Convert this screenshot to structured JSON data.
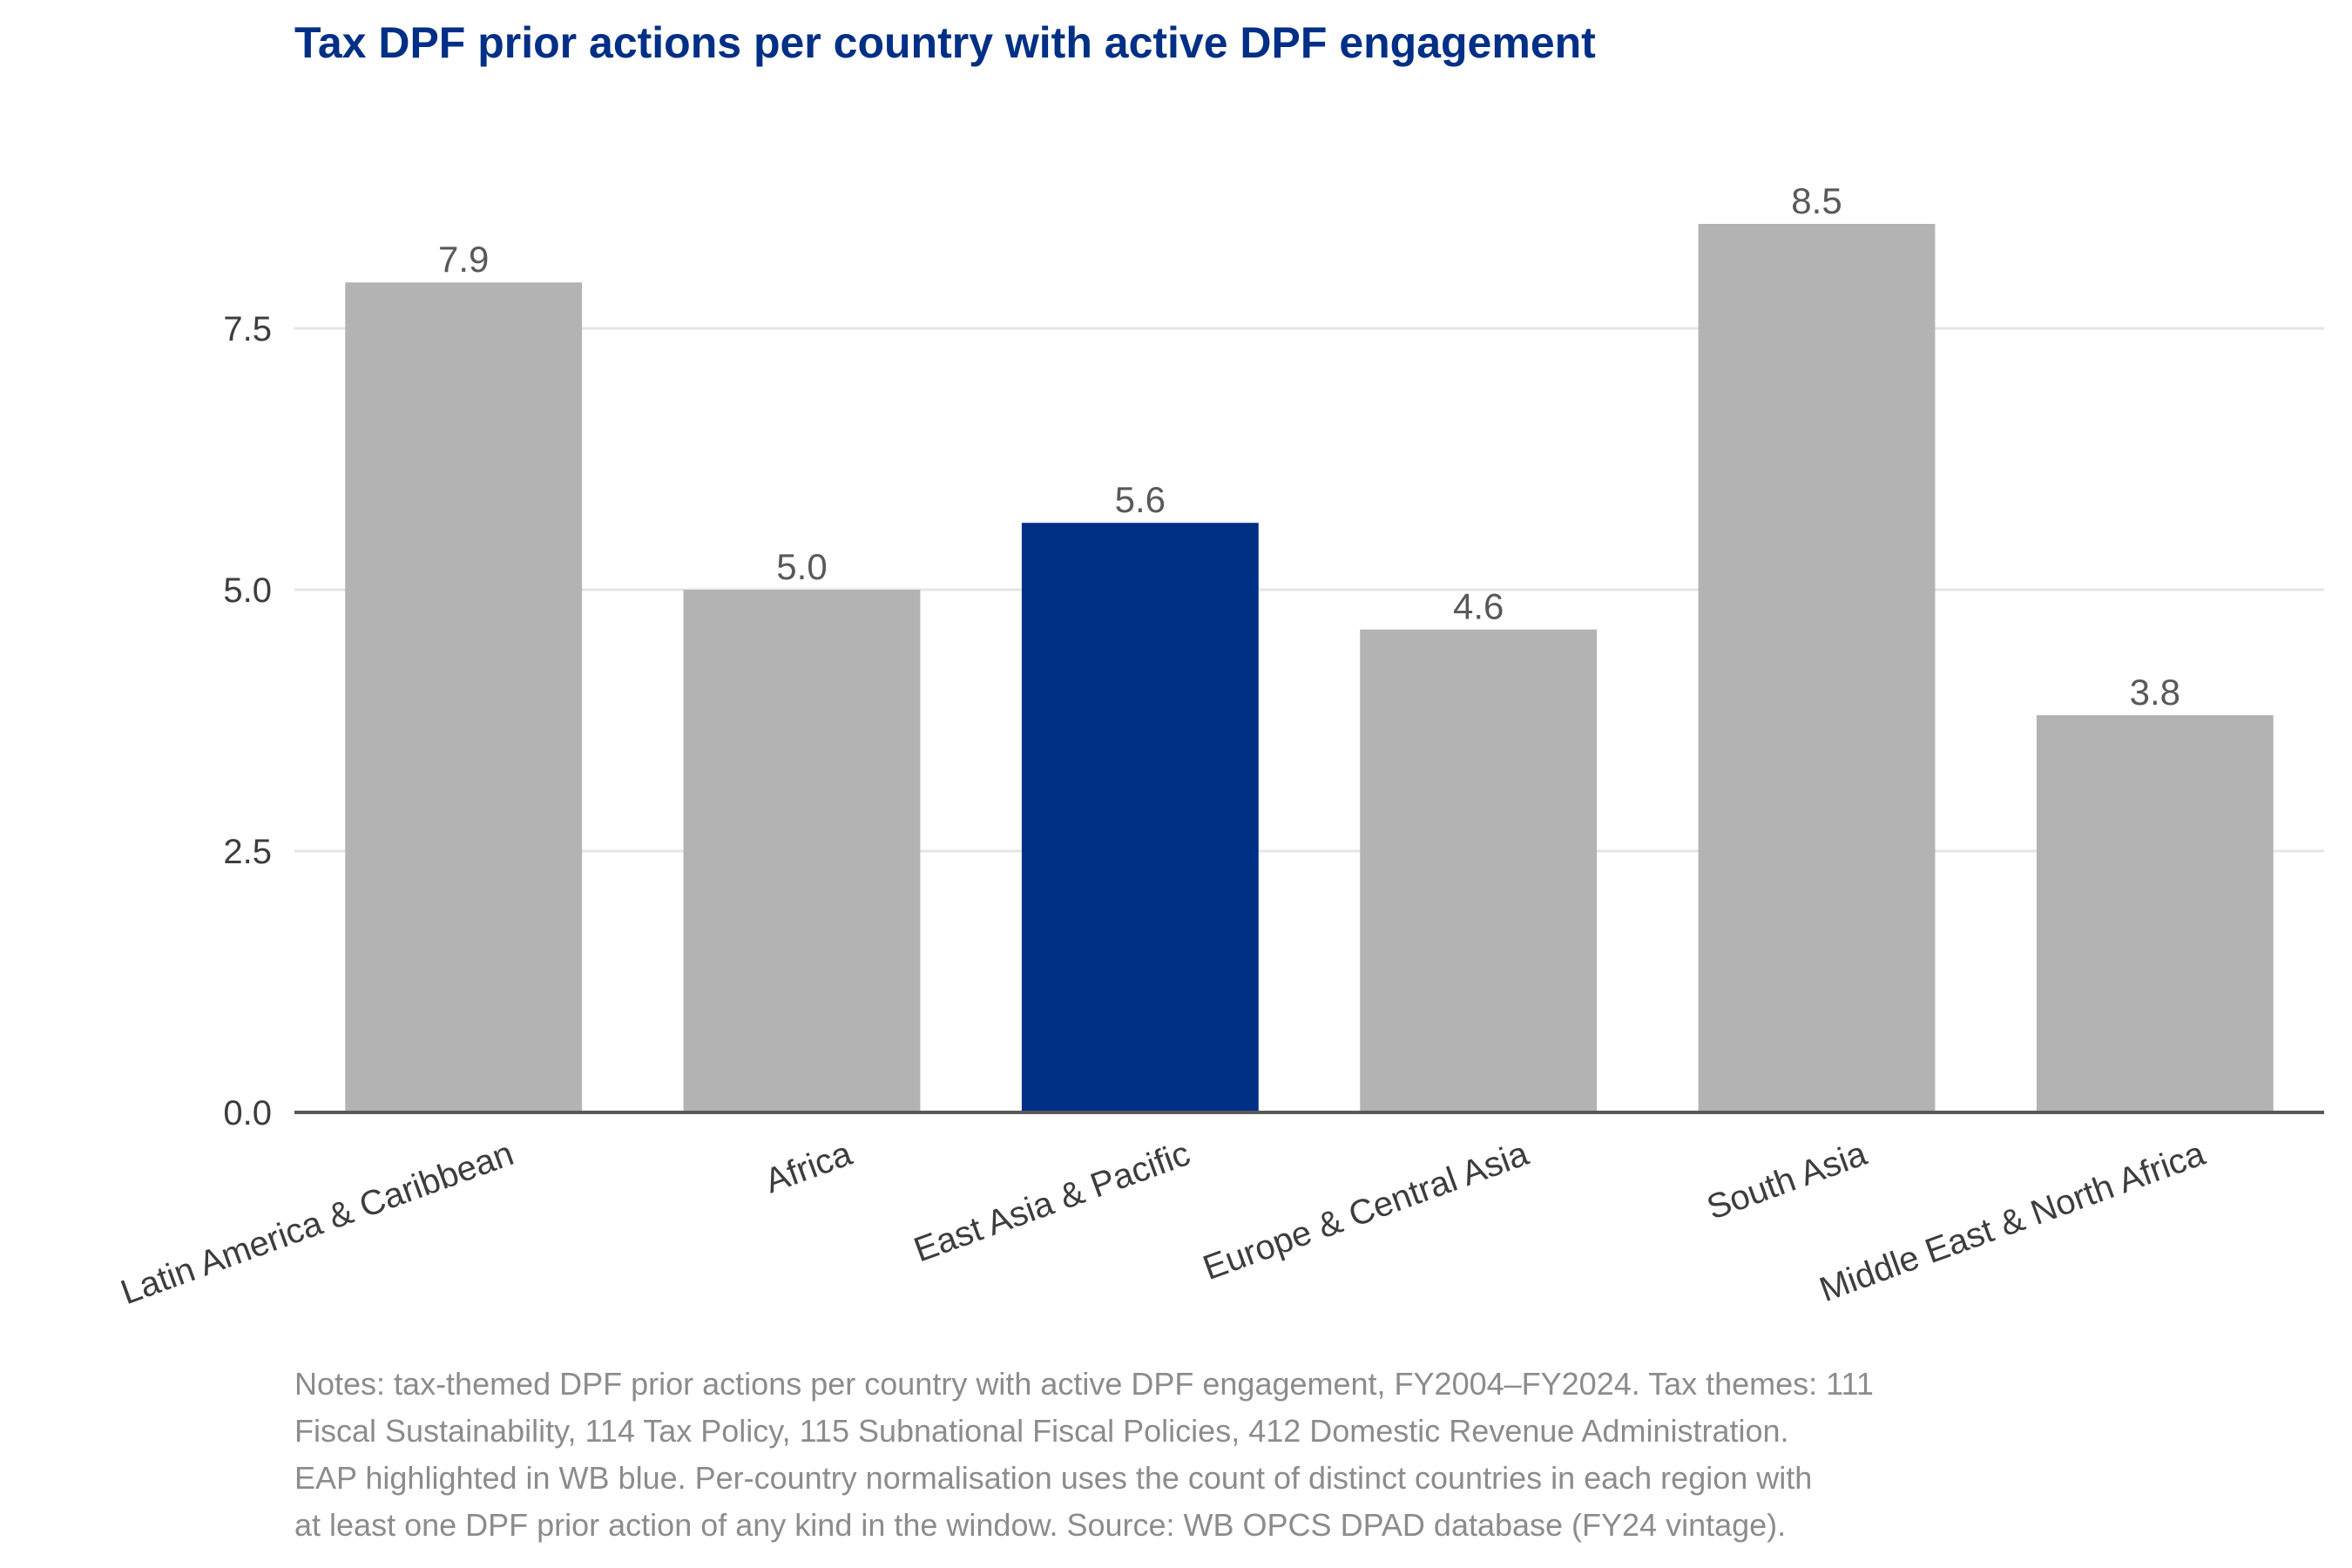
{
  "chart_data": {
    "type": "bar",
    "title": "Tax DPF prior actions per country with active DPF engagement",
    "xlabel": "",
    "ylabel": "",
    "categories": [
      "Latin America & Caribbean",
      "Africa",
      "East Asia & Pacific",
      "Europe & Central Asia",
      "South Asia",
      "Middle East & North Africa"
    ],
    "values": [
      7.94,
      5.0,
      5.64,
      4.62,
      8.5,
      3.8
    ],
    "value_labels": [
      "7.9",
      "5.0",
      "5.6",
      "4.6",
      "8.5",
      "3.8"
    ],
    "highlight": "East Asia & Pacific",
    "ylim": [
      0,
      9
    ],
    "yticks": [
      0,
      2.5,
      5,
      7.5
    ],
    "ytick_labels": [
      "0.0",
      "2.5",
      "5.0",
      "7.5"
    ],
    "grid": "horizontal",
    "colors": {
      "default_bar": "#b3b3b3",
      "highlight_bar": "#002f86",
      "title": "#002f86",
      "axis": "#595959",
      "gridline": "#e5e5e5",
      "value_label": "#595959",
      "tick_label": "#3d3d3d"
    }
  },
  "notes": [
    "Notes: tax-themed DPF prior actions per country with active DPF engagement, FY2004–FY2024. Tax themes: 111",
    "Fiscal Sustainability, 114 Tax Policy, 115 Subnational Fiscal Policies, 412 Domestic Revenue Administration.",
    "EAP highlighted in WB blue. Per-country normalisation uses the count of distinct countries in each region with",
    "at least one DPF prior action of any kind in the window. Source: WB OPCS DPAD database (FY24 vintage)."
  ]
}
